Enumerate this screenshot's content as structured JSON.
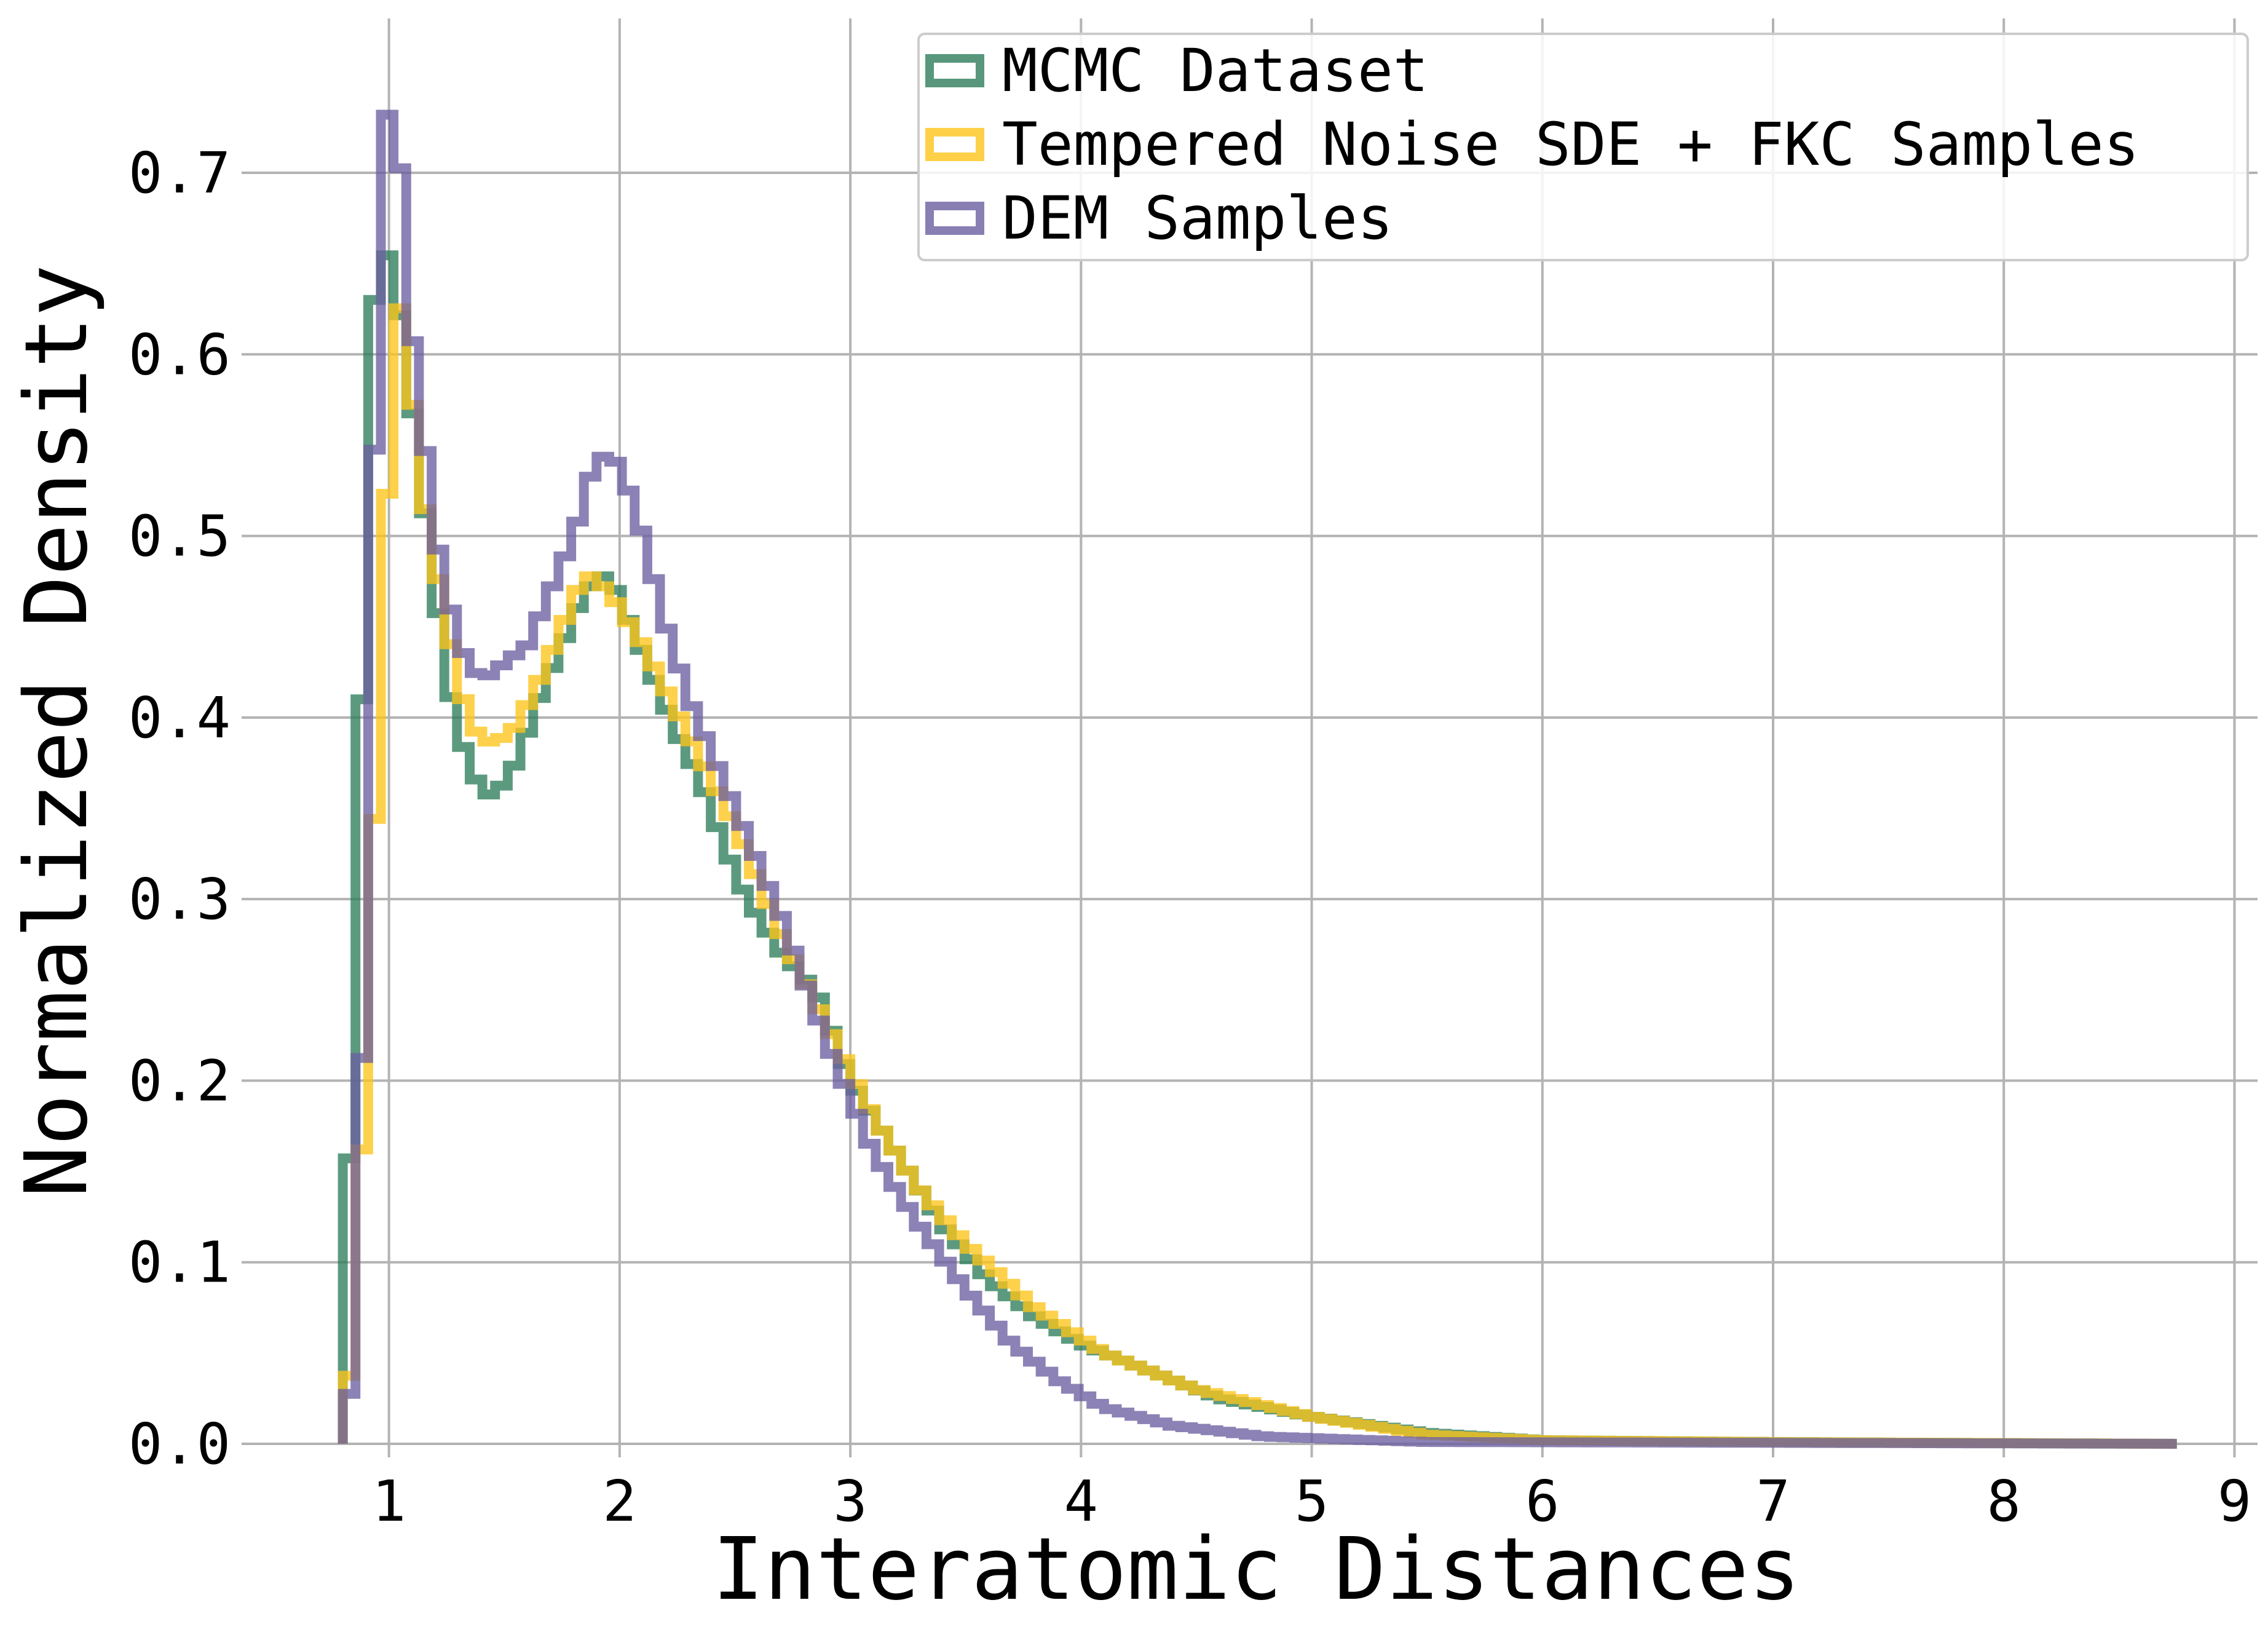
{
  "chart_data": {
    "type": "histogram-step",
    "xlabel": "Interatomic Distances",
    "ylabel": "Normalized Density",
    "xlim": [
      0.42,
      9.1
    ],
    "ylim": [
      0.0,
      0.785
    ],
    "xticks": [
      1,
      2,
      3,
      4,
      5,
      6,
      7,
      8,
      9
    ],
    "yticks": [
      0.0,
      0.1,
      0.2,
      0.3,
      0.4,
      0.5,
      0.6,
      0.7
    ],
    "ytick_labels": [
      "0.0",
      "0.1",
      "0.2",
      "0.3",
      "0.4",
      "0.5",
      "0.6",
      "0.7"
    ],
    "grid": true,
    "legend_position": "top-right",
    "series": [
      {
        "name": "MCMC Dataset",
        "color": "#2e7d5b",
        "points": [
          [
            0.8,
            0.03
          ],
          [
            0.88,
            0.4
          ],
          [
            0.95,
            0.68
          ],
          [
            1.05,
            0.62
          ],
          [
            1.15,
            0.52
          ],
          [
            1.25,
            0.42
          ],
          [
            1.35,
            0.37
          ],
          [
            1.45,
            0.355
          ],
          [
            1.55,
            0.375
          ],
          [
            1.65,
            0.41
          ],
          [
            1.75,
            0.44
          ],
          [
            1.85,
            0.47
          ],
          [
            1.95,
            0.48
          ],
          [
            2.05,
            0.45
          ],
          [
            2.15,
            0.42
          ],
          [
            2.25,
            0.39
          ],
          [
            2.35,
            0.365
          ],
          [
            2.45,
            0.33
          ],
          [
            2.55,
            0.3
          ],
          [
            2.7,
            0.27
          ],
          [
            2.85,
            0.25
          ],
          [
            3.0,
            0.2
          ],
          [
            3.2,
            0.16
          ],
          [
            3.4,
            0.12
          ],
          [
            3.6,
            0.09
          ],
          [
            3.8,
            0.07
          ],
          [
            4.0,
            0.055
          ],
          [
            4.3,
            0.04
          ],
          [
            4.6,
            0.025
          ],
          [
            5.0,
            0.015
          ],
          [
            5.5,
            0.006
          ],
          [
            6.0,
            0.002
          ],
          [
            7.0,
            0.001
          ],
          [
            8.75,
            0.0
          ]
        ]
      },
      {
        "name": "Tempered Noise SDE + FKC Samples",
        "color": "#fcc419",
        "points": [
          [
            0.8,
            0.01
          ],
          [
            0.85,
            0.06
          ],
          [
            0.92,
            0.28
          ],
          [
            0.98,
            0.5
          ],
          [
            1.05,
            0.63
          ],
          [
            1.15,
            0.52
          ],
          [
            1.25,
            0.45
          ],
          [
            1.35,
            0.395
          ],
          [
            1.45,
            0.385
          ],
          [
            1.55,
            0.395
          ],
          [
            1.65,
            0.42
          ],
          [
            1.75,
            0.45
          ],
          [
            1.85,
            0.48
          ],
          [
            1.95,
            0.47
          ],
          [
            2.1,
            0.44
          ],
          [
            2.3,
            0.39
          ],
          [
            2.5,
            0.34
          ],
          [
            2.7,
            0.28
          ],
          [
            2.9,
            0.23
          ],
          [
            3.1,
            0.18
          ],
          [
            3.3,
            0.14
          ],
          [
            3.5,
            0.11
          ],
          [
            3.8,
            0.075
          ],
          [
            4.1,
            0.05
          ],
          [
            4.5,
            0.03
          ],
          [
            5.0,
            0.015
          ],
          [
            5.5,
            0.005
          ],
          [
            6.0,
            0.002
          ],
          [
            7.0,
            0.001
          ],
          [
            8.75,
            0.0
          ]
        ]
      },
      {
        "name": "DEM Samples",
        "color": "#6c5fa0",
        "points": [
          [
            0.8,
            0.0
          ],
          [
            0.85,
            0.05
          ],
          [
            0.9,
            0.3
          ],
          [
            0.95,
            0.63
          ],
          [
            1.0,
            0.75
          ],
          [
            1.05,
            0.7
          ],
          [
            1.1,
            0.61
          ],
          [
            1.2,
            0.5
          ],
          [
            1.3,
            0.44
          ],
          [
            1.4,
            0.42
          ],
          [
            1.5,
            0.43
          ],
          [
            1.6,
            0.44
          ],
          [
            1.7,
            0.47
          ],
          [
            1.8,
            0.5
          ],
          [
            1.9,
            0.545
          ],
          [
            2.0,
            0.54
          ],
          [
            2.1,
            0.5
          ],
          [
            2.2,
            0.45
          ],
          [
            2.3,
            0.41
          ],
          [
            2.5,
            0.35
          ],
          [
            2.7,
            0.29
          ],
          [
            2.9,
            0.22
          ],
          [
            3.1,
            0.16
          ],
          [
            3.3,
            0.12
          ],
          [
            3.5,
            0.085
          ],
          [
            3.7,
            0.055
          ],
          [
            3.9,
            0.035
          ],
          [
            4.1,
            0.02
          ],
          [
            4.4,
            0.01
          ],
          [
            4.8,
            0.004
          ],
          [
            5.5,
            0.001
          ],
          [
            8.75,
            0.0
          ]
        ]
      }
    ]
  }
}
